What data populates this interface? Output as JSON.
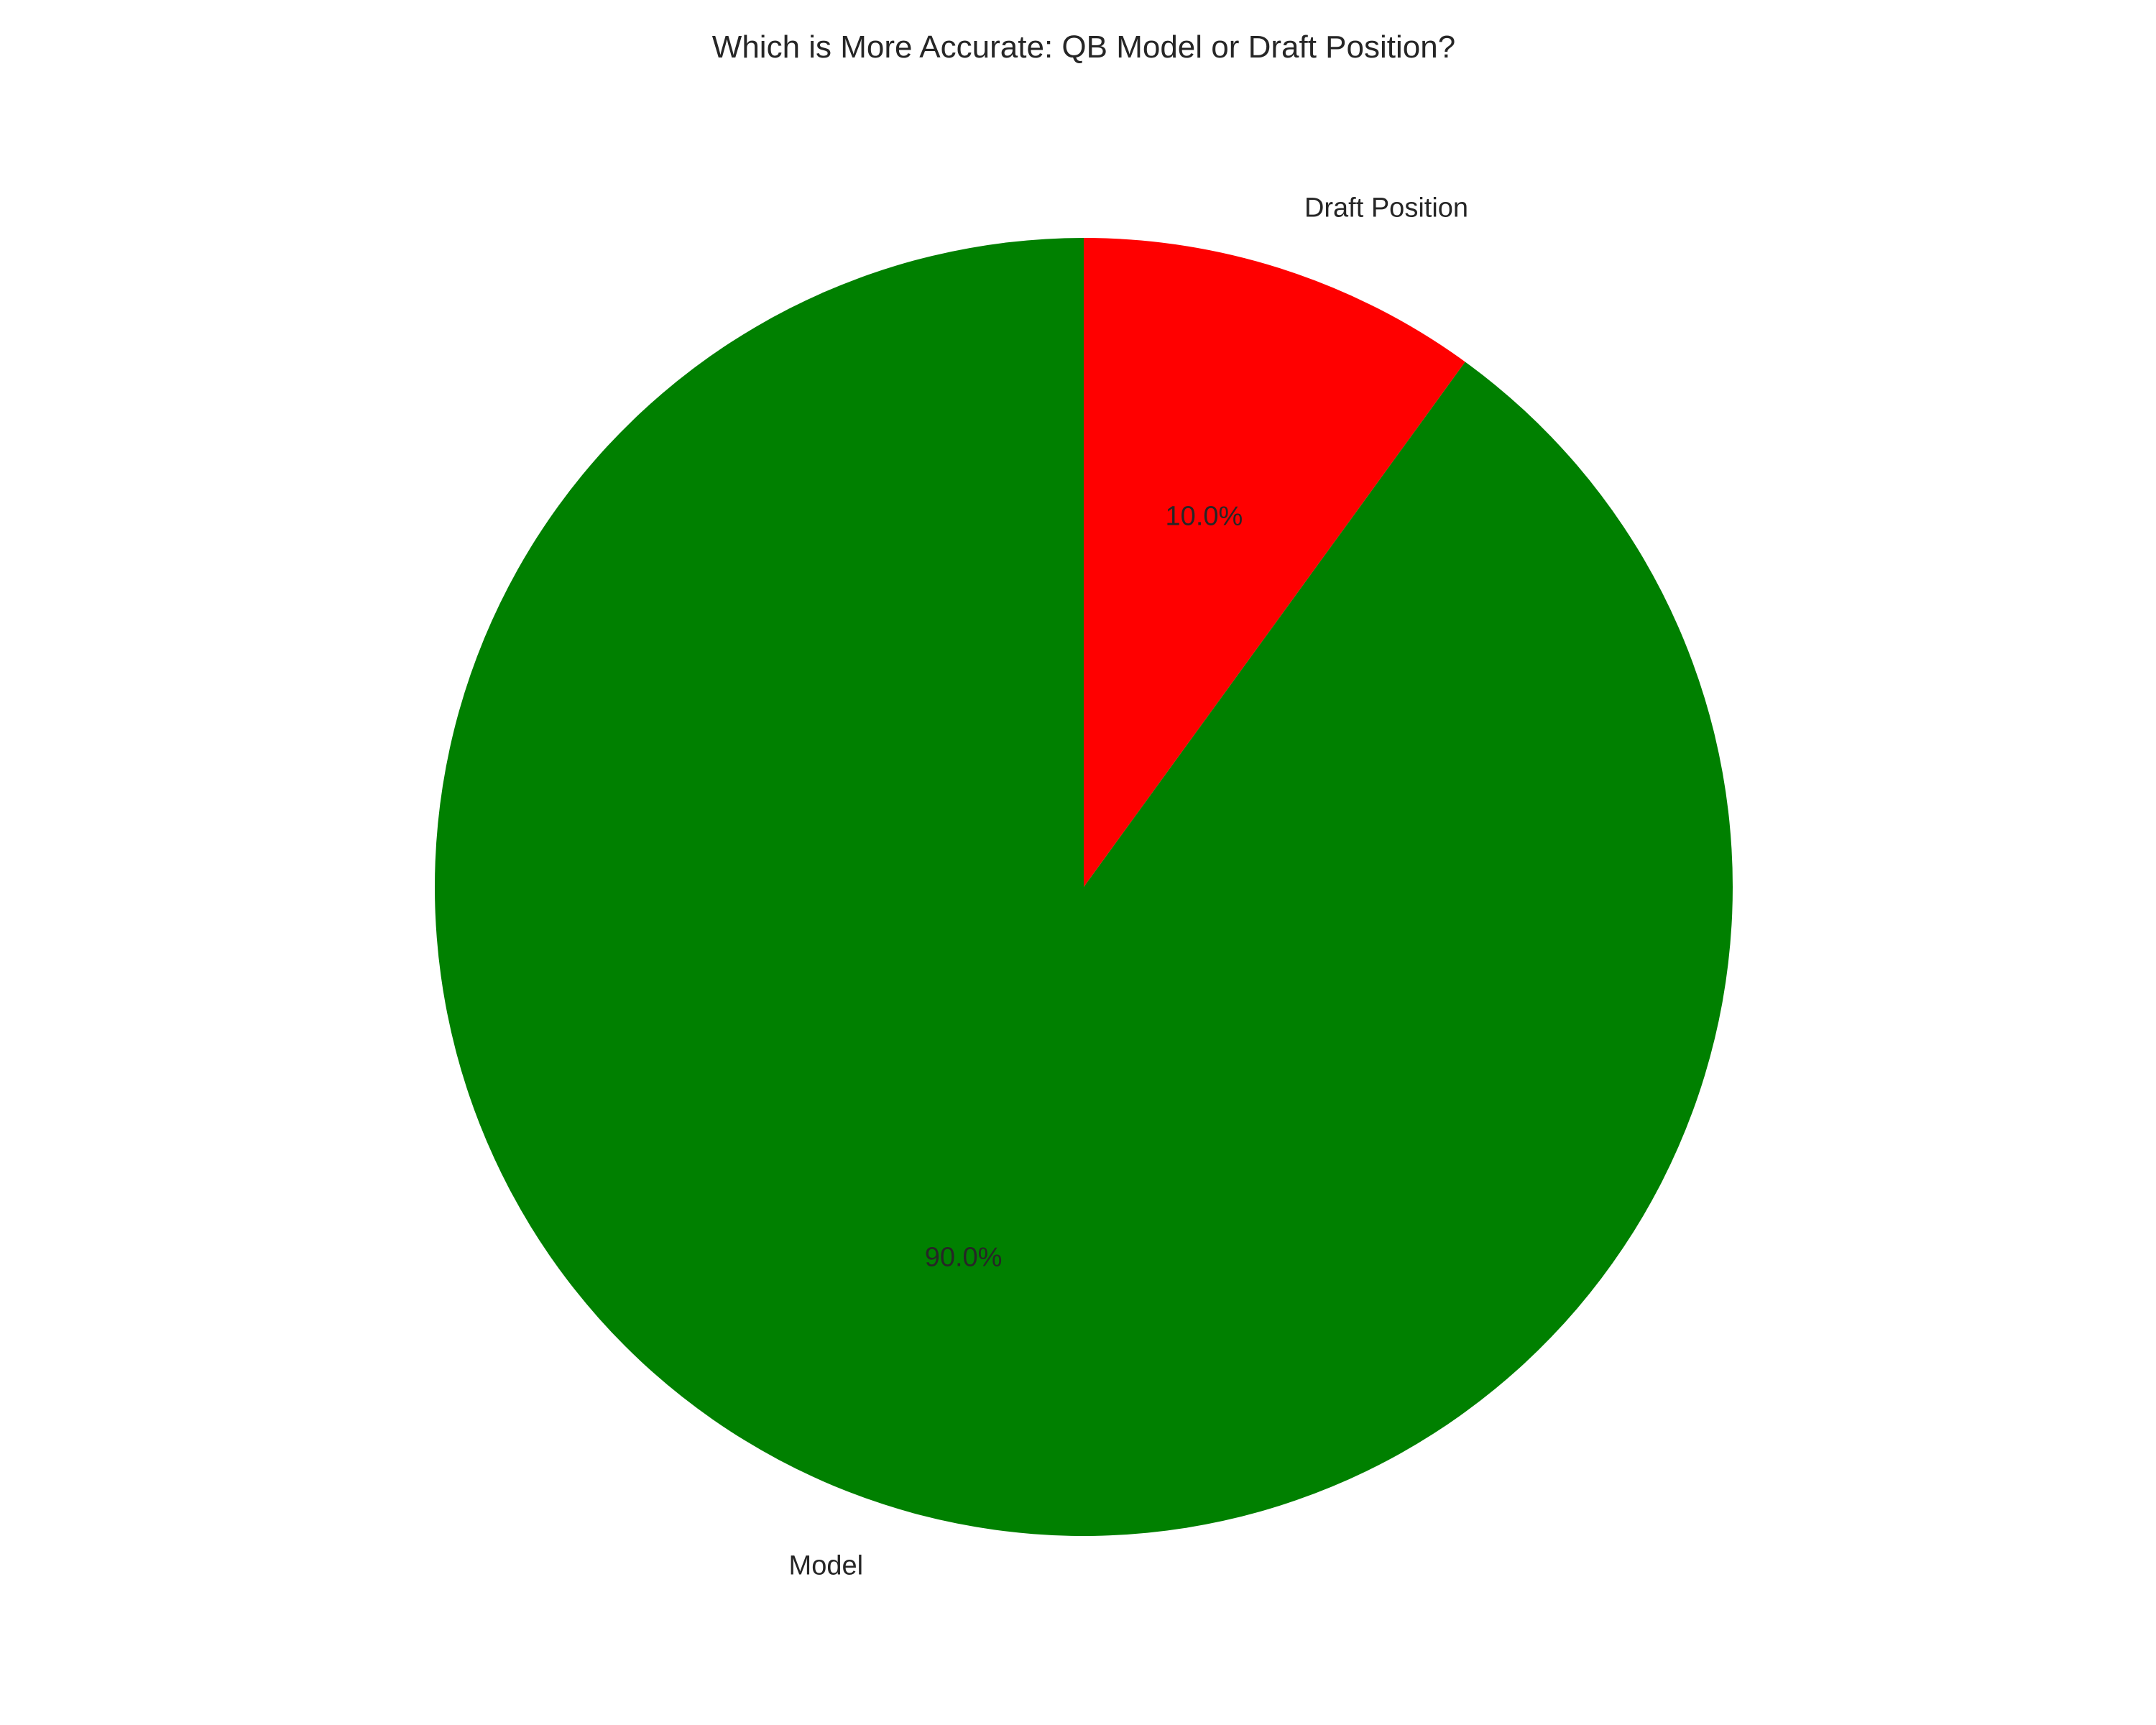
{
  "chart_data": {
    "type": "pie",
    "title": "Which is More Accurate: QB Model or Draft Position?",
    "slices": [
      {
        "label": "Draft Position",
        "value": 10.0,
        "pct_label": "10.0%",
        "color": "#ff0000"
      },
      {
        "label": "Model",
        "value": 90.0,
        "pct_label": "90.0%",
        "color": "#008000"
      }
    ],
    "start_angle_deg": 90,
    "direction": "clockwise",
    "legend": "none"
  }
}
